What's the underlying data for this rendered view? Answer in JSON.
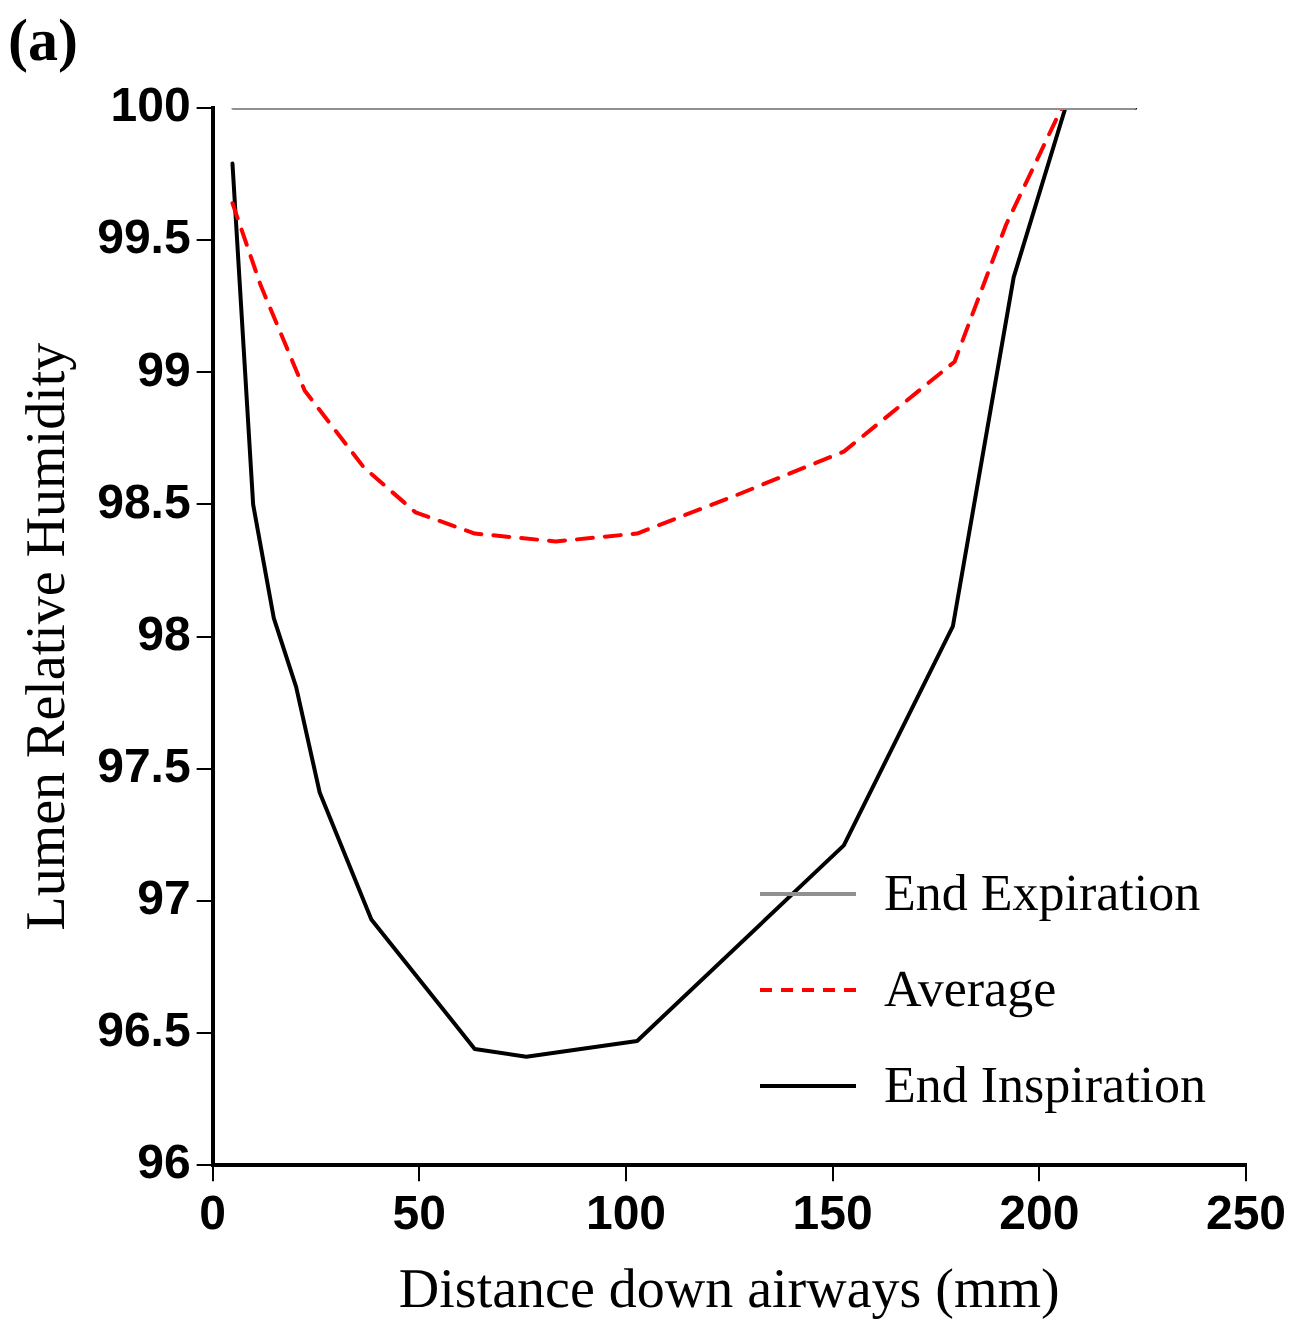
{
  "chart_data": {
    "type": "line",
    "title": "(a)",
    "xlabel": "Distance down airways (mm)",
    "ylabel": "Lumen Relative Humidity",
    "xlim": [
      0,
      250
    ],
    "xticks": [
      0,
      50,
      100,
      150,
      200,
      250
    ],
    "ylim": [
      96,
      100
    ],
    "yticks": [
      96,
      96.5,
      97,
      97.5,
      98,
      98.5,
      99,
      99.5,
      100
    ],
    "grid": false,
    "legend": "bottom right",
    "marker": "none",
    "series": [
      {
        "name": "End Expiration",
        "color": "#909090",
        "line_style": "solid",
        "x": [
          5,
          223
        ],
        "values": [
          100,
          100
        ]
      },
      {
        "name": "Average",
        "color": "#ff0000",
        "line_style": "dashed",
        "x": [
          4.8,
          11.6,
          22.3,
          36.6,
          49.1,
          63.4,
          83,
          102.7,
          125.9,
          152.7,
          179.5,
          192,
          205.4
        ],
        "values": [
          99.64,
          99.33,
          98.93,
          98.64,
          98.47,
          98.39,
          98.36,
          98.39,
          98.53,
          98.7,
          99.04,
          99.56,
          100
        ]
      },
      {
        "name": "End Inspiration",
        "color": "#000000",
        "line_style": "solid",
        "x": [
          4.8,
          9.8,
          14.8,
          20.2,
          25.9,
          38.4,
          63.4,
          75.9,
          102.7,
          152.7,
          179.1,
          193.8,
          206.3,
          223.2
        ],
        "values": [
          99.79,
          98.5,
          98.07,
          97.81,
          97.41,
          96.93,
          96.44,
          96.41,
          96.47,
          97.21,
          98.04,
          99.36,
          100,
          100
        ]
      }
    ]
  }
}
